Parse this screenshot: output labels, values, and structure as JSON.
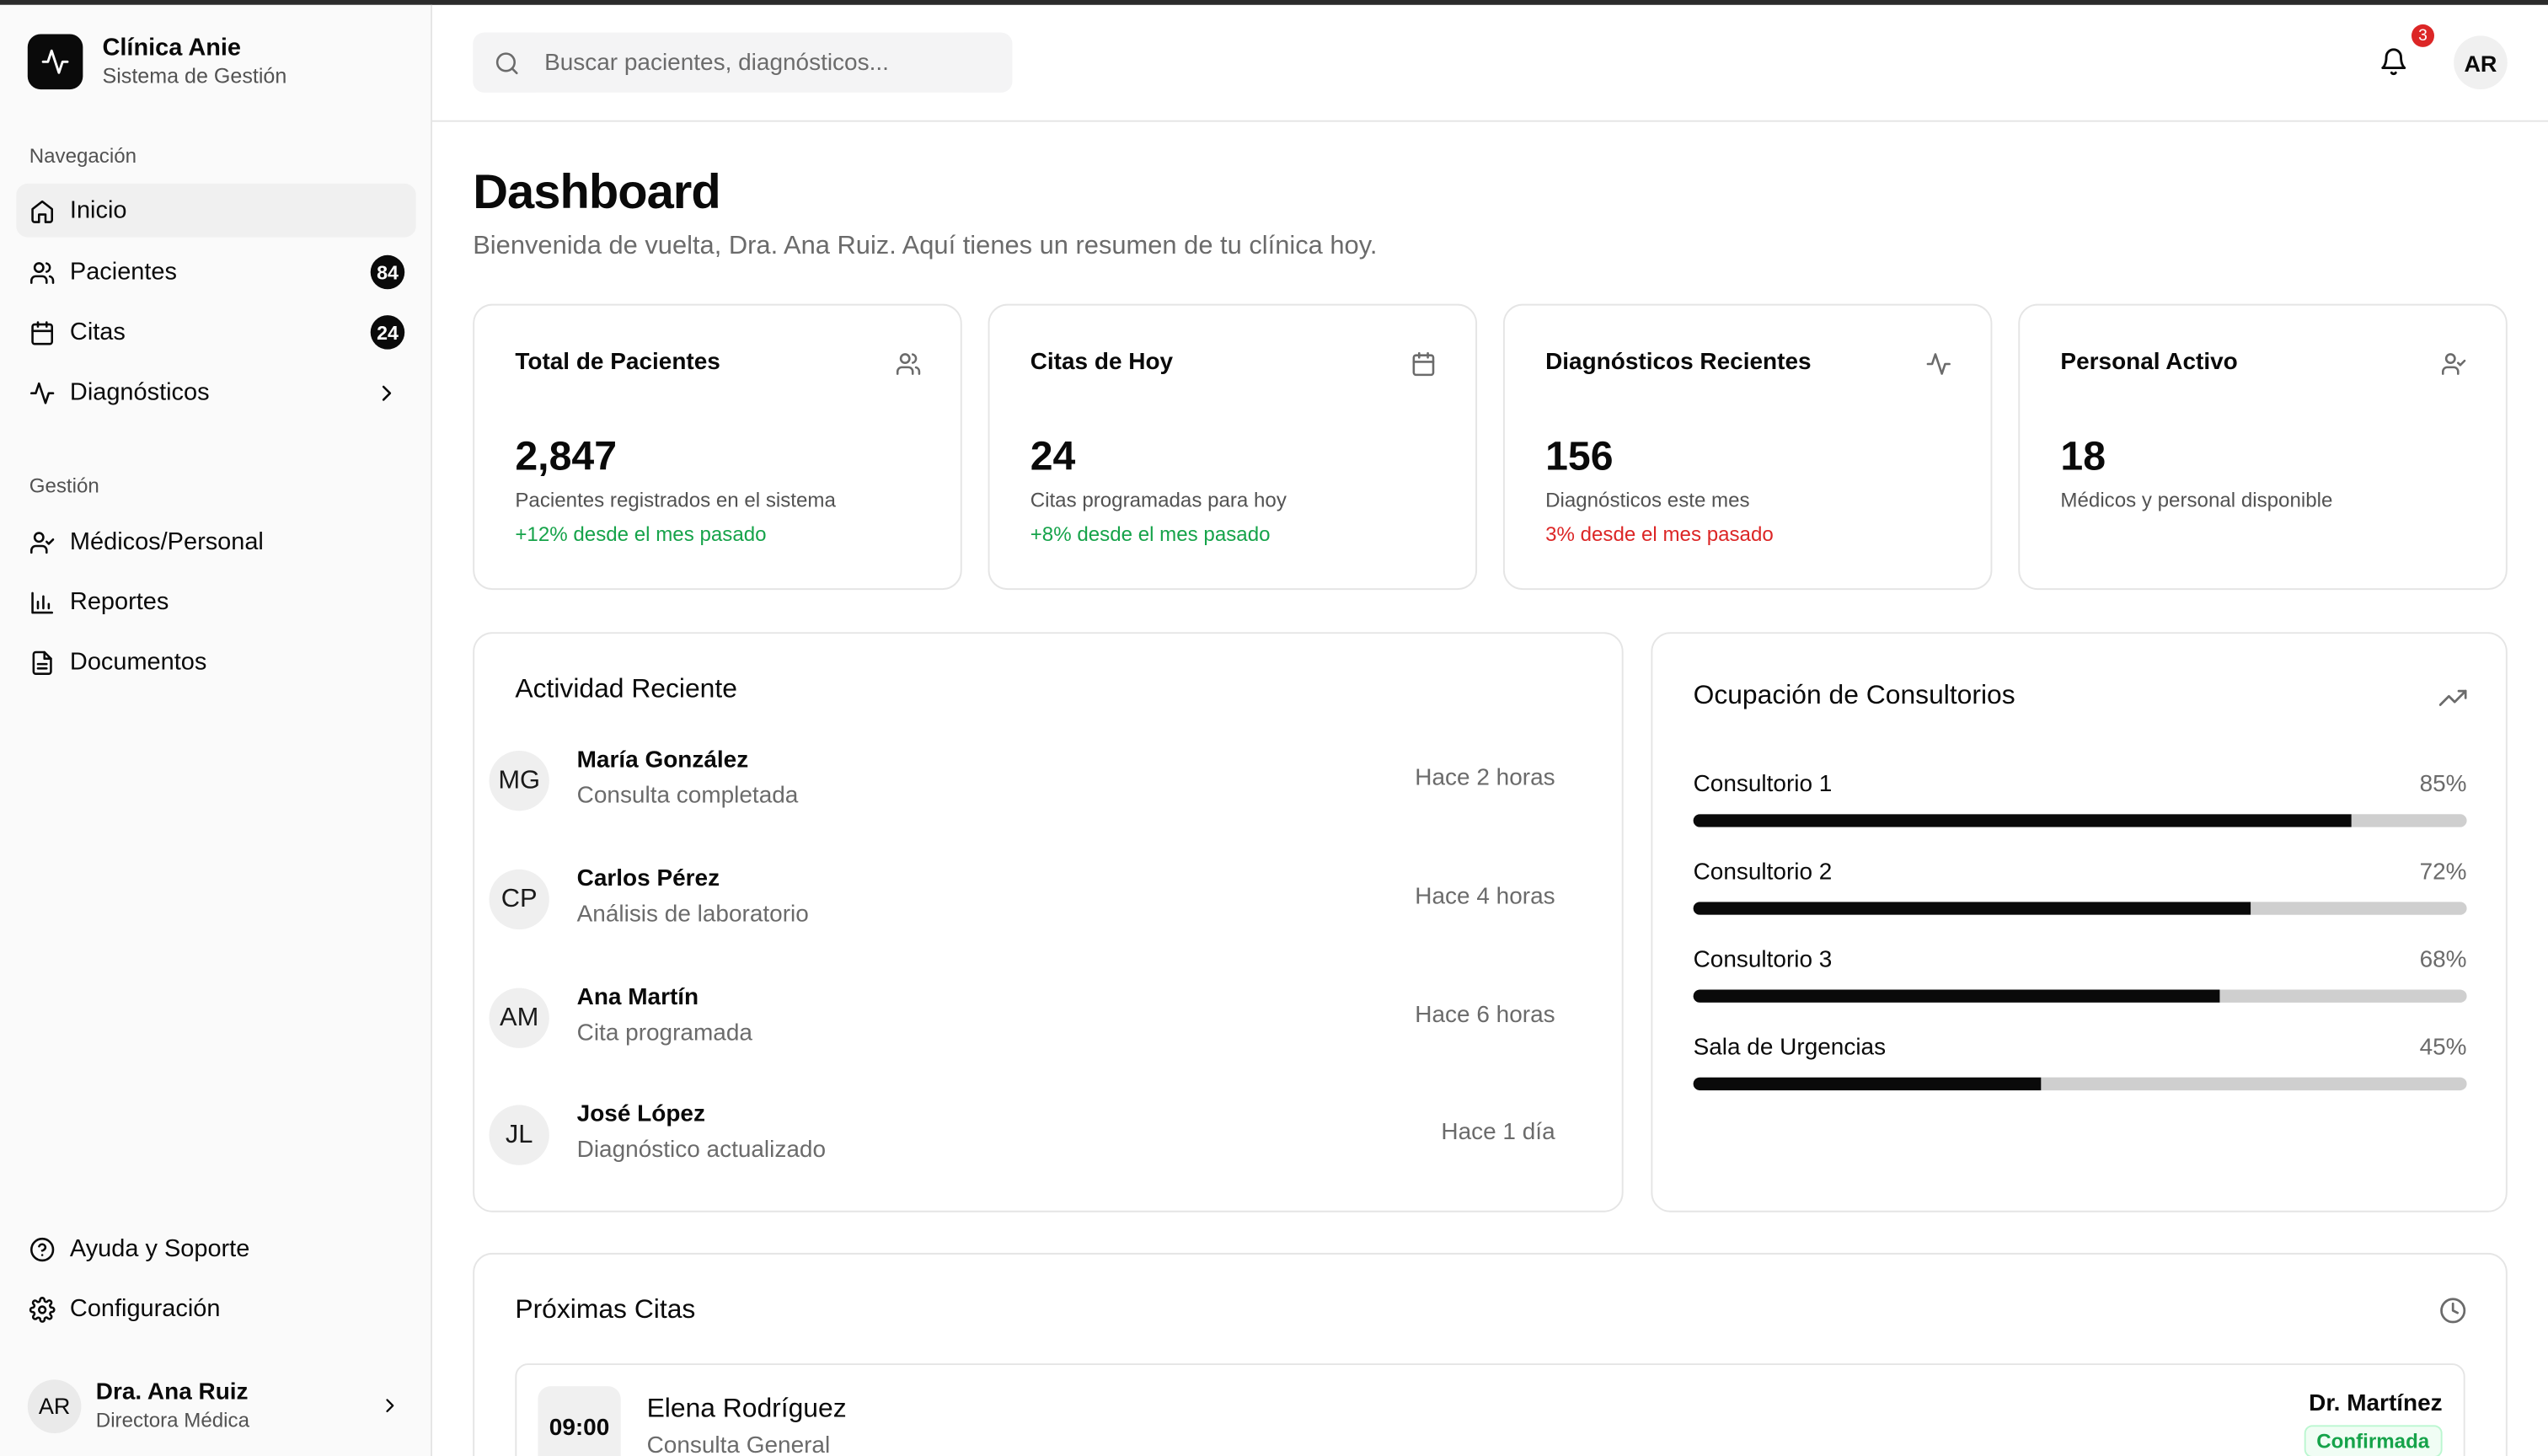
{
  "brand": {
    "name": "Clínica Anie",
    "subtitle": "Sistema de Gestión"
  },
  "sidebar": {
    "nav_label": "Navegación",
    "nav_items": [
      {
        "label": "Inicio",
        "icon": "home-icon",
        "active": true
      },
      {
        "label": "Pacientes",
        "icon": "users-icon",
        "badge": "84"
      },
      {
        "label": "Citas",
        "icon": "calendar-icon",
        "badge": "24"
      },
      {
        "label": "Diagnósticos",
        "icon": "activity-icon",
        "chevron": true
      }
    ],
    "mgmt_label": "Gestión",
    "mgmt_items": [
      {
        "label": "Médicos/Personal",
        "icon": "user-check-icon"
      },
      {
        "label": "Reportes",
        "icon": "bar-chart-icon"
      },
      {
        "label": "Documentos",
        "icon": "file-text-icon"
      }
    ],
    "footer_items": [
      {
        "label": "Ayuda y Soporte",
        "icon": "help-circle-icon"
      },
      {
        "label": "Configuración",
        "icon": "settings-icon"
      }
    ],
    "user": {
      "initials": "AR",
      "name": "Dra. Ana Ruiz",
      "role": "Directora Médica"
    }
  },
  "header": {
    "search_placeholder": "Buscar pacientes, diagnósticos...",
    "notifications_count": "3",
    "avatar_initials": "AR"
  },
  "page": {
    "title": "Dashboard",
    "subtitle": "Bienvenida de vuelta, Dra. Ana Ruiz. Aquí tienes un resumen de tu clínica hoy."
  },
  "stats": [
    {
      "title": "Total de Pacientes",
      "icon": "users-icon",
      "value": "2,847",
      "desc": "Pacientes registrados en el sistema",
      "trend": "+12% desde el mes pasado",
      "trend_color": "#16a34a"
    },
    {
      "title": "Citas de Hoy",
      "icon": "calendar-icon",
      "value": "24",
      "desc": "Citas programadas para hoy",
      "trend": "+8% desde el mes pasado",
      "trend_color": "#16a34a"
    },
    {
      "title": "Diagnósticos Recientes",
      "icon": "activity-icon",
      "value": "156",
      "desc": "Diagnósticos este mes",
      "trend": "3% desde el mes pasado",
      "trend_color": "#dc2626"
    },
    {
      "title": "Personal Activo",
      "icon": "user-check-icon",
      "value": "18",
      "desc": "Médicos y personal disponible",
      "trend": ""
    }
  ],
  "activity": {
    "title": "Actividad Reciente",
    "items": [
      {
        "initials": "MG",
        "name": "María González",
        "desc": "Consulta completada",
        "time": "Hace 2 horas"
      },
      {
        "initials": "CP",
        "name": "Carlos Pérez",
        "desc": "Análisis de laboratorio",
        "time": "Hace 4 horas"
      },
      {
        "initials": "AM",
        "name": "Ana Martín",
        "desc": "Cita programada",
        "time": "Hace 6 horas"
      },
      {
        "initials": "JL",
        "name": "José López",
        "desc": "Diagnóstico actualizado",
        "time": "Hace 1 día"
      }
    ]
  },
  "occupancy": {
    "title": "Ocupación de Consultorios",
    "icon": "trending-up-icon",
    "rooms": [
      {
        "name": "Consultorio 1",
        "percent_label": "85%",
        "value": 85
      },
      {
        "name": "Consultorio 2",
        "percent_label": "72%",
        "value": 72
      },
      {
        "name": "Consultorio 3",
        "percent_label": "68%",
        "value": 68
      },
      {
        "name": "Sala de Urgencias",
        "percent_label": "45%",
        "value": 45
      }
    ]
  },
  "upcoming": {
    "title": "Próximas Citas",
    "icon": "clock-icon",
    "items": [
      {
        "time": "09:00",
        "patient": "Elena Rodríguez",
        "type": "Consulta General",
        "doctor": "Dr. Martínez",
        "status": "Confirmada"
      }
    ]
  }
}
